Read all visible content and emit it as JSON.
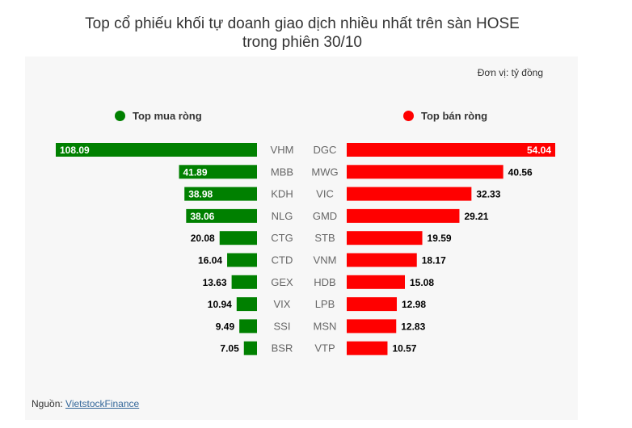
{
  "title_line1": "Top cổ phiếu khối tự doanh giao dịch nhiều nhất trên sàn HOSE",
  "title_line2": "trong phiên 30/10",
  "unit_label": "Đơn vị: tỷ đồng",
  "source_prefix": "Nguồn: ",
  "source_link": "VietstockFinance",
  "colors": {
    "buy": "#008000",
    "sell": "#ff0000",
    "background": "#f7f7f7"
  },
  "chart_data": {
    "type": "bar",
    "buy": {
      "name": "Top mua ròng",
      "categories": [
        "VHM",
        "MBB",
        "KDH",
        "NLG",
        "CTG",
        "CTD",
        "GEX",
        "VIX",
        "SSI",
        "BSR"
      ],
      "values": [
        108.09,
        41.89,
        38.98,
        38.06,
        20.08,
        16.04,
        13.63,
        10.94,
        9.49,
        7.05
      ],
      "labels": [
        "108.09",
        "41.89",
        "38.98",
        "38.06",
        "20.08",
        "16.04",
        "13.63",
        "10.94",
        "9.49",
        "7.05"
      ]
    },
    "sell": {
      "name": "Top bán ròng",
      "categories": [
        "DGC",
        "MWG",
        "VIC",
        "GMD",
        "STB",
        "VNM",
        "HDB",
        "LPB",
        "MSN",
        "VTP"
      ],
      "values": [
        54.04,
        40.56,
        32.33,
        29.21,
        19.59,
        18.17,
        15.08,
        12.98,
        12.83,
        10.57
      ],
      "labels": [
        "54.04",
        "40.56",
        "32.33",
        "29.21",
        "19.59",
        "18.17",
        "15.08",
        "12.98",
        "12.83",
        "10.57"
      ]
    },
    "legend_position": "top",
    "grid": false
  }
}
